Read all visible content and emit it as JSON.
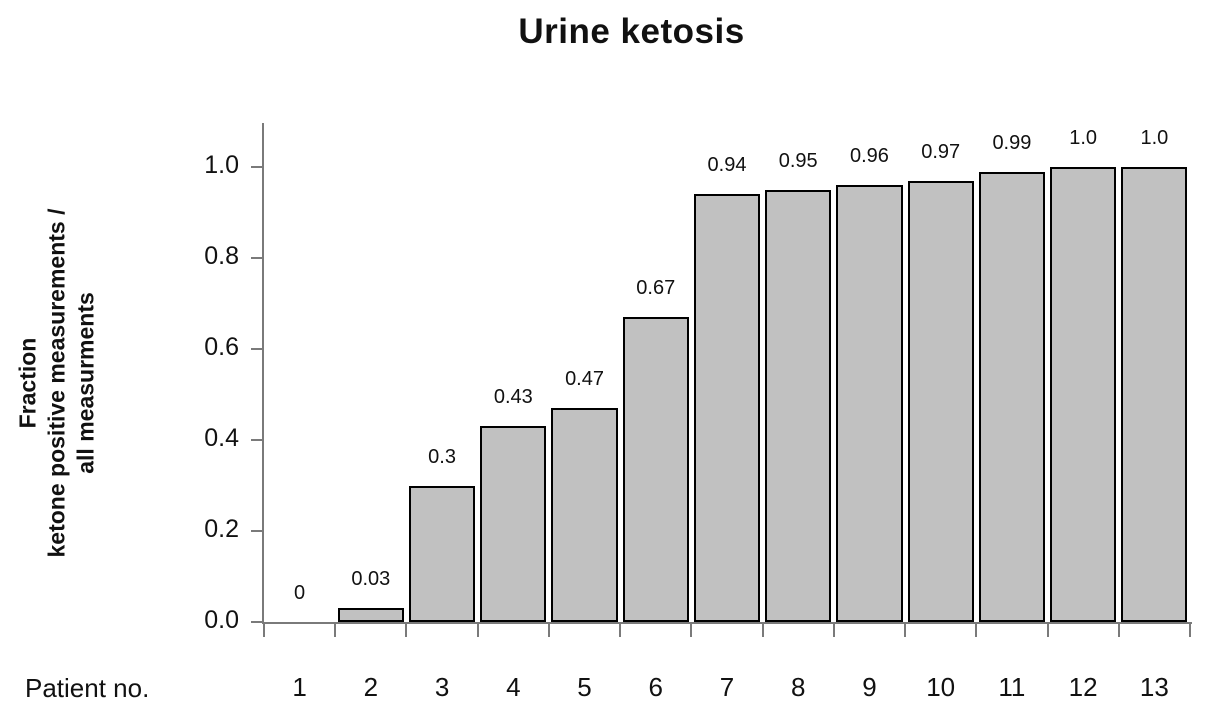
{
  "chart_data": {
    "type": "bar",
    "title": "Urine ketosis",
    "ylabel": "Fraction\nketone positive measurements /\nall measurments",
    "xlabel": "Patient no.",
    "categories": [
      "1",
      "2",
      "3",
      "4",
      "5",
      "6",
      "7",
      "8",
      "9",
      "10",
      "11",
      "12",
      "13"
    ],
    "values": [
      0,
      0.03,
      0.3,
      0.43,
      0.47,
      0.67,
      0.94,
      0.95,
      0.96,
      0.97,
      0.99,
      1.0,
      1.0
    ],
    "bar_labels": [
      "0",
      "0.03",
      "0.3",
      "0.43",
      "0.47",
      "0.67",
      "0.94",
      "0.95",
      "0.96",
      "0.97",
      "0.99",
      "1.0",
      "1.0"
    ],
    "ylim": [
      0,
      1.0
    ],
    "yticks": [
      0.0,
      0.2,
      0.4,
      0.6,
      0.8,
      1.0
    ],
    "ytick_labels": [
      "0.0",
      "0.2",
      "0.4",
      "0.6",
      "0.8",
      "1.0"
    ],
    "grid": false,
    "legend": null,
    "bar_color": "#c1c1c1",
    "bar_border_color": "#000000",
    "axis_color": "#7a7a7a",
    "text_color": "#111111"
  }
}
